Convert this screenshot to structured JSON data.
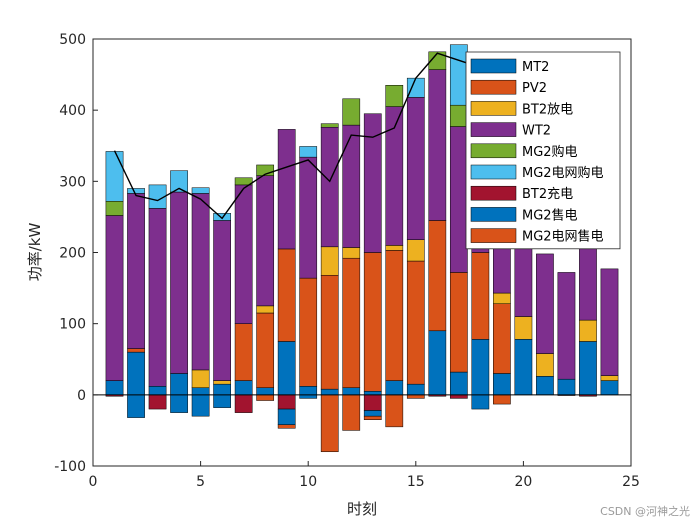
{
  "watermark": "CSDN @河神之光",
  "chart_data": {
    "type": "bar",
    "stacked": true,
    "with_line_overlay": true,
    "xlabel": "时刻",
    "ylabel": "功率/kW",
    "xlim": [
      0,
      25
    ],
    "ylim": [
      -100,
      500
    ],
    "xticks": [
      0,
      5,
      10,
      15,
      20,
      25
    ],
    "yticks": [
      -100,
      0,
      100,
      200,
      300,
      400,
      500
    ],
    "grid": false,
    "legend_position": "top-right",
    "x": [
      1,
      2,
      3,
      4,
      5,
      6,
      7,
      8,
      9,
      10,
      11,
      12,
      13,
      14,
      15,
      16,
      17,
      18,
      19,
      20,
      21,
      22,
      23,
      24
    ],
    "series": [
      {
        "name": "MT2",
        "color": "#0072BD",
        "values": [
          20,
          60,
          12,
          30,
          10,
          15,
          20,
          10,
          75,
          12,
          8,
          10,
          5,
          20,
          15,
          90,
          32,
          78,
          30,
          78,
          26,
          22,
          75,
          20
        ]
      },
      {
        "name": "PV2",
        "color": "#D95319",
        "values": [
          0,
          5,
          0,
          0,
          0,
          0,
          80,
          105,
          130,
          152,
          160,
          182,
          195,
          183,
          173,
          155,
          140,
          122,
          98,
          0,
          0,
          0,
          0,
          0
        ]
      },
      {
        "name": "BT2放电",
        "color": "#EDB120",
        "values": [
          0,
          0,
          0,
          0,
          25,
          5,
          0,
          10,
          0,
          0,
          40,
          15,
          0,
          7,
          30,
          0,
          0,
          0,
          15,
          32,
          32,
          0,
          30,
          7
        ]
      },
      {
        "name": "WT2",
        "color": "#7E2F8E",
        "values": [
          232,
          218,
          250,
          255,
          248,
          225,
          195,
          183,
          168,
          170,
          168,
          172,
          195,
          195,
          200,
          212,
          205,
          140,
          140,
          140,
          140,
          150,
          150,
          150
        ]
      },
      {
        "name": "MG2购电",
        "color": "#77AC30",
        "values": [
          20,
          0,
          0,
          0,
          0,
          0,
          10,
          15,
          0,
          0,
          5,
          37,
          0,
          30,
          0,
          25,
          30,
          15,
          0,
          0,
          0,
          0,
          0,
          0
        ]
      },
      {
        "name": "MG2电网购电",
        "color": "#4DBEEE",
        "values": [
          70,
          7,
          33,
          30,
          8,
          10,
          0,
          0,
          0,
          15,
          0,
          0,
          0,
          0,
          27,
          0,
          85,
          0,
          0,
          0,
          0,
          0,
          0,
          0
        ]
      },
      {
        "name": "BT2充电",
        "color": "#A2142F",
        "values": [
          -2,
          0,
          -20,
          0,
          0,
          0,
          -25,
          0,
          -20,
          0,
          0,
          0,
          -22,
          0,
          0,
          -2,
          -5,
          0,
          0,
          0,
          0,
          -1,
          -2,
          0
        ]
      },
      {
        "name": "MG2售电",
        "color": "#0072BD",
        "values": [
          0,
          -32,
          0,
          -25,
          -30,
          -18,
          0,
          0,
          -22,
          -5,
          0,
          0,
          -8,
          0,
          0,
          0,
          0,
          -20,
          0,
          0,
          0,
          0,
          0,
          0
        ]
      },
      {
        "name": "MG2电网售电",
        "color": "#D95319",
        "values": [
          0,
          0,
          0,
          0,
          0,
          0,
          0,
          -8,
          -5,
          0,
          -80,
          -50,
          -5,
          -45,
          -5,
          0,
          0,
          0,
          -13,
          0,
          0,
          0,
          0,
          0
        ]
      }
    ],
    "line": {
      "values": [
        343,
        280,
        273,
        290,
        275,
        248,
        290,
        310,
        320,
        330,
        300,
        365,
        362,
        375,
        445,
        480,
        470,
        460,
        450,
        440,
        430,
        420,
        410,
        400
      ]
    }
  }
}
